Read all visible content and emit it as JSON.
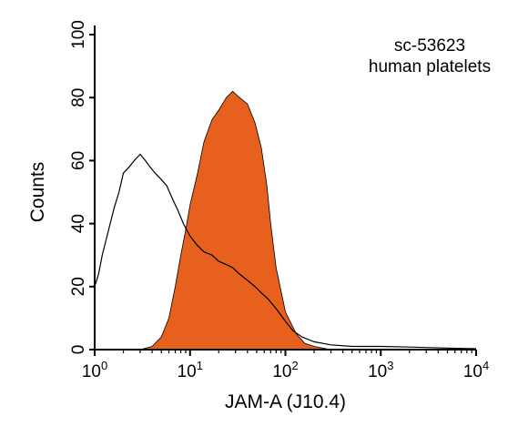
{
  "chart_data": {
    "type": "area",
    "title": "",
    "xlabel": "JAM-A (J10.4)",
    "ylabel": "Counts",
    "xscale": "log",
    "xlim": [
      1,
      10000
    ],
    "ylim": [
      0,
      100
    ],
    "x_ticks": [
      1,
      10,
      100,
      1000,
      10000
    ],
    "x_tick_labels": [
      {
        "base": "10",
        "exp": "0"
      },
      {
        "base": "10",
        "exp": "1"
      },
      {
        "base": "10",
        "exp": "2"
      },
      {
        "base": "10",
        "exp": "3"
      },
      {
        "base": "10",
        "exp": "4"
      }
    ],
    "y_ticks": [
      0,
      20,
      40,
      60,
      80,
      100
    ],
    "y_tick_labels": [
      "0",
      "20",
      "40",
      "60",
      "80",
      "100"
    ],
    "grid": false,
    "legend": null,
    "annotations": [
      "sc-53623",
      "human platelets"
    ],
    "series": [
      {
        "style": "outline",
        "color": "#000000",
        "x": [
          1,
          1.1,
          1.2,
          1.4,
          1.6,
          1.8,
          2.0,
          2.3,
          2.6,
          3.0,
          3.4,
          3.8,
          4.3,
          5.0,
          5.7,
          6.5,
          7.5,
          8.5,
          10,
          12,
          14,
          17,
          20,
          24,
          28,
          33,
          40,
          48,
          56,
          66,
          80,
          100,
          120,
          150,
          200,
          300,
          500,
          1000,
          2000,
          5000,
          10000
        ],
        "y": [
          20,
          24,
          30,
          38,
          45,
          50,
          56,
          58,
          60,
          62,
          60,
          58,
          56,
          54,
          52,
          48,
          44,
          40,
          36,
          33,
          31,
          30,
          28,
          27,
          26,
          24,
          22,
          20,
          18,
          16,
          13,
          9,
          6,
          4,
          2.5,
          1.5,
          1,
          1,
          0.8,
          0.5,
          0.3
        ]
      },
      {
        "style": "filled",
        "color": "#e8601e",
        "x": [
          3,
          4,
          5,
          6,
          7,
          8,
          9,
          10,
          12,
          14,
          17,
          20,
          24,
          28,
          33,
          40,
          48,
          56,
          64,
          70,
          80,
          100,
          130,
          160,
          200,
          300
        ],
        "y": [
          0,
          1,
          4,
          10,
          20,
          30,
          38,
          46,
          56,
          66,
          73,
          76,
          80,
          82,
          80,
          78,
          72,
          64,
          52,
          40,
          26,
          12,
          5,
          2,
          1,
          0
        ]
      }
    ]
  }
}
